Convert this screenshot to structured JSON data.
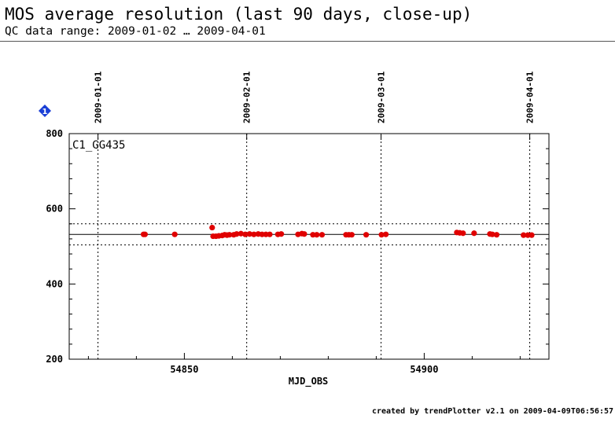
{
  "header": {
    "title": "MOS average resolution (last 90 days, close-up)",
    "subtitle": "QC data range: 2009-01-02 … 2009-04-01"
  },
  "footer": {
    "text": "created by trendPlotter v2.1 on 2009-04-09T06:56:57"
  },
  "badge": {
    "label": "1",
    "color": "#1a3fd6"
  },
  "chart_data": {
    "type": "scatter",
    "panel_label": "C1_GG435",
    "xlabel": "MJD_OBS",
    "ylabel": "",
    "xlim": [
      54826,
      54926
    ],
    "ylim": [
      200,
      800
    ],
    "x_ticks": [
      54850,
      54900
    ],
    "y_ticks": [
      200,
      400,
      600,
      800
    ],
    "date_markers": [
      {
        "label": "2009-01-01",
        "x": 54832
      },
      {
        "label": "2009-02-01",
        "x": 54863
      },
      {
        "label": "2009-03-01",
        "x": 54891
      },
      {
        "label": "2009-04-01",
        "x": 54922
      }
    ],
    "reference_lines": {
      "mean": 532,
      "upper": 560,
      "lower": 504
    },
    "marker_color": "#e00000",
    "grid": false,
    "points": [
      {
        "x": 54841.5,
        "y": 532
      },
      {
        "x": 54841.8,
        "y": 532
      },
      {
        "x": 54848.0,
        "y": 532
      },
      {
        "x": 54855.8,
        "y": 550
      },
      {
        "x": 54856.0,
        "y": 527
      },
      {
        "x": 54856.6,
        "y": 527
      },
      {
        "x": 54857.2,
        "y": 528
      },
      {
        "x": 54857.9,
        "y": 529
      },
      {
        "x": 54858.4,
        "y": 531
      },
      {
        "x": 54858.9,
        "y": 530
      },
      {
        "x": 54859.4,
        "y": 531
      },
      {
        "x": 54860.3,
        "y": 531
      },
      {
        "x": 54860.9,
        "y": 533
      },
      {
        "x": 54861.8,
        "y": 534
      },
      {
        "x": 54862.7,
        "y": 532
      },
      {
        "x": 54863.6,
        "y": 533
      },
      {
        "x": 54864.5,
        "y": 532
      },
      {
        "x": 54865.4,
        "y": 533
      },
      {
        "x": 54866.2,
        "y": 532
      },
      {
        "x": 54867.0,
        "y": 532
      },
      {
        "x": 54867.8,
        "y": 532
      },
      {
        "x": 54869.5,
        "y": 532
      },
      {
        "x": 54870.2,
        "y": 533
      },
      {
        "x": 54873.7,
        "y": 532
      },
      {
        "x": 54874.5,
        "y": 534
      },
      {
        "x": 54875.0,
        "y": 533
      },
      {
        "x": 54876.8,
        "y": 531
      },
      {
        "x": 54877.6,
        "y": 531
      },
      {
        "x": 54878.7,
        "y": 531
      },
      {
        "x": 54883.7,
        "y": 531
      },
      {
        "x": 54884.3,
        "y": 531
      },
      {
        "x": 54884.9,
        "y": 531
      },
      {
        "x": 54887.9,
        "y": 531
      },
      {
        "x": 54891.1,
        "y": 531
      },
      {
        "x": 54892.0,
        "y": 532
      },
      {
        "x": 54906.8,
        "y": 537
      },
      {
        "x": 54907.4,
        "y": 536
      },
      {
        "x": 54908.1,
        "y": 535
      },
      {
        "x": 54910.4,
        "y": 535
      },
      {
        "x": 54913.7,
        "y": 533
      },
      {
        "x": 54914.2,
        "y": 532
      },
      {
        "x": 54915.1,
        "y": 531
      },
      {
        "x": 54920.7,
        "y": 530
      },
      {
        "x": 54921.6,
        "y": 530
      },
      {
        "x": 54922.4,
        "y": 530
      }
    ]
  }
}
